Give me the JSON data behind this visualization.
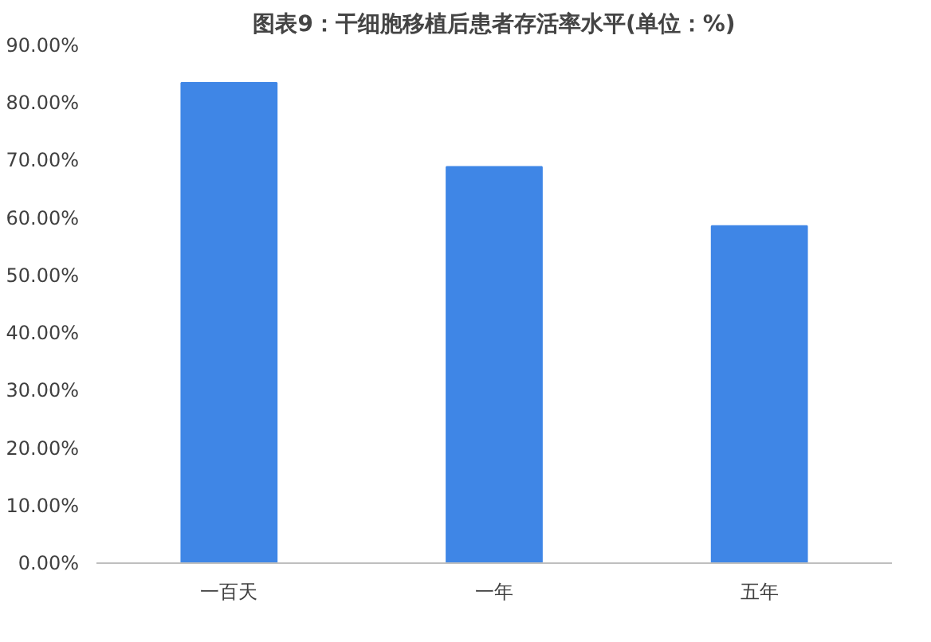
{
  "chart_data": {
    "type": "bar",
    "title": "图表9：干细胞移植后患者存活率水平(单位：%)",
    "categories": [
      "一百天",
      "一年",
      "五年"
    ],
    "values": [
      83.5,
      68.9,
      58.6
    ],
    "color": "#3f86e6",
    "ylim": [
      0,
      90
    ],
    "yticks": [
      {
        "value": 0,
        "label": "0.00%"
      },
      {
        "value": 10,
        "label": "10.00%"
      },
      {
        "value": 20,
        "label": "20.00%"
      },
      {
        "value": 30,
        "label": "30.00%"
      },
      {
        "value": 40,
        "label": "40.00%"
      },
      {
        "value": 50,
        "label": "50.00%"
      },
      {
        "value": 60,
        "label": "60.00%"
      },
      {
        "value": 70,
        "label": "70.00%"
      },
      {
        "value": 80,
        "label": "80.00%"
      },
      {
        "value": 90,
        "label": "90.00%"
      }
    ],
    "grid": false
  }
}
